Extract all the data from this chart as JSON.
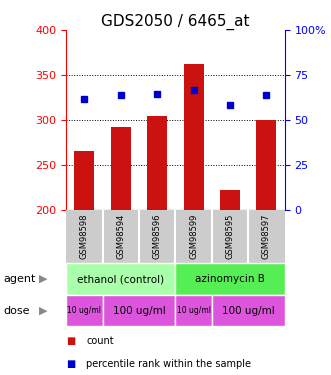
{
  "title": "GDS2050 / 6465_at",
  "samples": [
    "GSM98598",
    "GSM98594",
    "GSM98596",
    "GSM98599",
    "GSM98595",
    "GSM98597"
  ],
  "bar_values": [
    265,
    292,
    304,
    362,
    222,
    300
  ],
  "percentile_values": [
    323,
    328,
    329,
    333,
    316,
    328
  ],
  "ylim_left": [
    200,
    400
  ],
  "ylim_right": [
    0,
    100
  ],
  "bar_color": "#cc1111",
  "dot_color": "#0000cc",
  "bar_bottom": 200,
  "yticks_left": [
    200,
    250,
    300,
    350,
    400
  ],
  "yticks_right": [
    0,
    25,
    50,
    75,
    100
  ],
  "ytick_labels_right": [
    "0",
    "25",
    "50",
    "75",
    "100%"
  ],
  "agent_labels": [
    "ethanol (control)",
    "azinomycin B"
  ],
  "agent_colors": [
    "#aaffaa",
    "#55ee55"
  ],
  "dose_color": "#dd55dd",
  "sample_bg_color": "#cccccc",
  "legend_count_color": "#cc1111",
  "legend_pct_color": "#0000cc",
  "title_fontsize": 11,
  "tick_fontsize": 8,
  "label_fontsize": 9
}
